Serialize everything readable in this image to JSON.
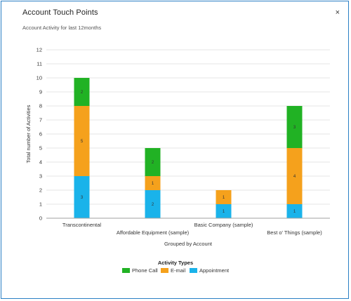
{
  "dialog": {
    "title": "Account Touch Points",
    "close_label": "×"
  },
  "chart_data": {
    "type": "bar",
    "stacked": true,
    "title": "",
    "subtitle": "Account Activity for last 12months",
    "xlabel": "Grouped by Account",
    "ylabel": "Total number of Activities",
    "ylim": [
      0,
      12
    ],
    "yticks": [
      0,
      1,
      2,
      3,
      4,
      5,
      6,
      7,
      8,
      9,
      10,
      11,
      12
    ],
    "grid": true,
    "legend_title": "Activity Types",
    "legend_position": "bottom",
    "categories": [
      "Transcontinental",
      "Affordable  Equipment (sample)",
      "Basic  Company (sample)",
      "Best o' Things (sample)"
    ],
    "series": [
      {
        "name": "Appointment",
        "color": "#1ab3ea",
        "values": [
          3,
          2,
          1,
          1
        ],
        "labels": [
          "3",
          "2",
          "1",
          "1"
        ]
      },
      {
        "name": "E-mail",
        "color": "#f5a11c",
        "values": [
          5,
          1,
          1,
          4
        ],
        "labels": [
          "5",
          "1",
          "1",
          "4"
        ]
      },
      {
        "name": "Phone Call",
        "color": "#21b224",
        "values": [
          2,
          2,
          0,
          3
        ],
        "labels": [
          "2",
          "2",
          "",
          "3"
        ]
      }
    ],
    "legend_order": [
      "Phone Call",
      "E-mail",
      "Appointment"
    ]
  }
}
